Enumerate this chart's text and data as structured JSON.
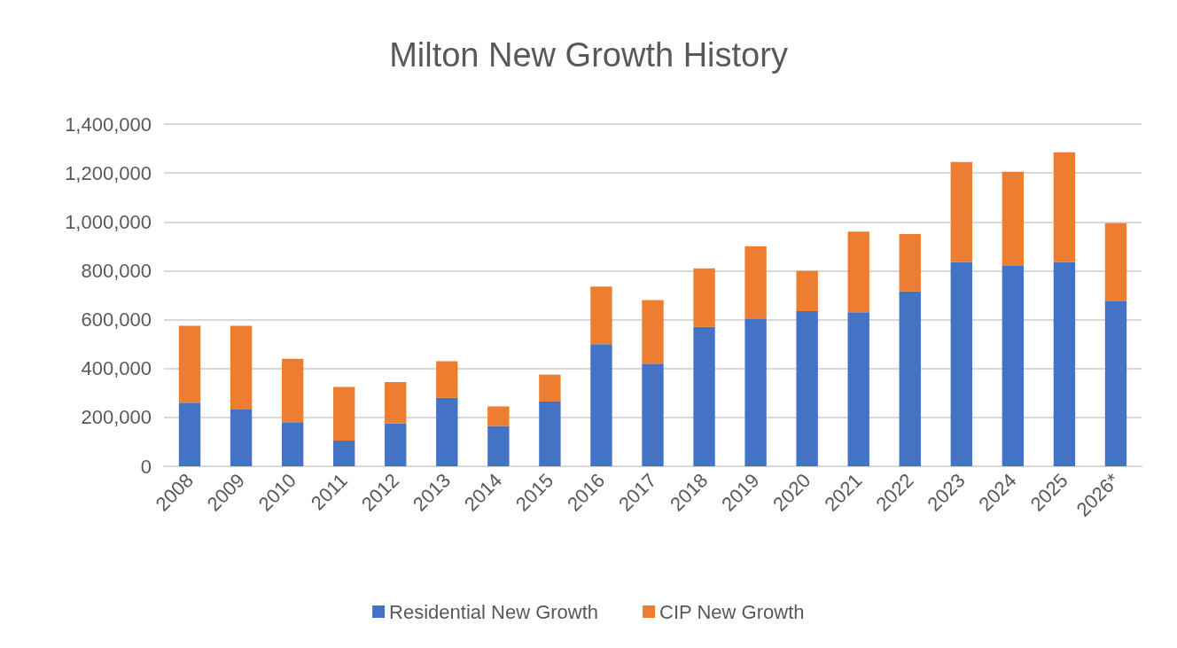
{
  "chart_data": {
    "type": "bar",
    "title": "Milton New Growth History",
    "stacked": true,
    "categories": [
      "2008",
      "2009",
      "2010",
      "2011",
      "2012",
      "2013",
      "2014",
      "2015",
      "2016",
      "2017",
      "2018",
      "2019",
      "2020",
      "2021",
      "2022",
      "2023",
      "2024",
      "2025",
      "2026*"
    ],
    "series": [
      {
        "name": "Residential New Growth",
        "color": "#4472c4",
        "values": [
          260000,
          235000,
          180000,
          105000,
          175000,
          280000,
          165000,
          265000,
          500000,
          420000,
          570000,
          605000,
          635000,
          630000,
          715000,
          835000,
          820000,
          835000,
          675000
        ]
      },
      {
        "name": "CIP New Growth",
        "color": "#ed7d31",
        "values": [
          315000,
          340000,
          260000,
          220000,
          170000,
          150000,
          80000,
          110000,
          235000,
          260000,
          240000,
          295000,
          165000,
          330000,
          235000,
          410000,
          385000,
          450000,
          320000
        ]
      }
    ],
    "ylim": [
      0,
      1400000
    ],
    "yticks": [
      0,
      {
        "value": 200000,
        "label": "200,000"
      },
      {
        "value": 400000,
        "label": "400,000"
      },
      {
        "value": 600000,
        "label": "600,000"
      },
      {
        "value": 800000,
        "label": "800,000"
      },
      {
        "value": 1000000,
        "label": "1,000,000"
      },
      {
        "value": 1200000,
        "label": "1,200,000"
      },
      {
        "value": 1400000,
        "label": "1,400,000"
      }
    ],
    "grid": "y",
    "legend": "bottom"
  }
}
